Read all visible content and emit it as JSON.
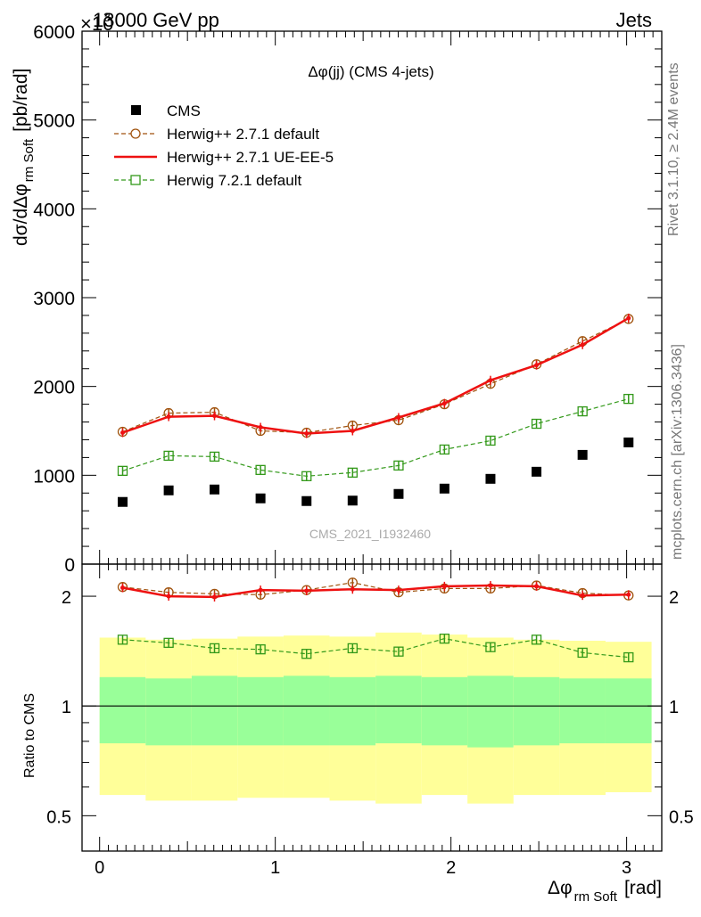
{
  "header": {
    "left": "13000 GeV pp",
    "right": "Jets",
    "exponent": "×10"
  },
  "side_text": {
    "rivet": "Rivet 3.1.10, ≥ 2.4M events",
    "mcplots": "mcplots.cern.ch [arXiv:1306.3436]"
  },
  "watermark": "CMS_2021_I1932460",
  "chart_data": [
    {
      "type": "line",
      "title": "Δφ(jj) (CMS 4-jets)",
      "ylabel": "dσ/dΔφ",
      "ylabel_sub": "rm Soft",
      "ylabel_unit": "[pb/rad]",
      "ylim": [
        0,
        6000
      ],
      "xlim": [
        -0.1,
        3.2
      ],
      "y_ticks": [
        0,
        1000,
        2000,
        3000,
        4000,
        5000,
        6000
      ],
      "x": [
        0.131,
        0.393,
        0.654,
        0.916,
        1.178,
        1.44,
        1.702,
        1.963,
        2.225,
        2.487,
        2.749,
        3.011
      ],
      "legend_position": "top-left",
      "series": [
        {
          "name": "CMS",
          "style": "marker-square",
          "color": "#000000",
          "values": [
            700,
            830,
            840,
            740,
            710,
            715,
            790,
            850,
            960,
            1040,
            1230,
            1370
          ]
        },
        {
          "name": "Herwig++ 2.7.1 default",
          "style": "dashed-circle",
          "color": "#a0520d",
          "values": [
            1490,
            1700,
            1710,
            1500,
            1480,
            1560,
            1620,
            1800,
            2030,
            2250,
            2510,
            2760
          ]
        },
        {
          "name": "Herwig++ 2.7.1 UE-EE-5",
          "style": "solid",
          "color": "#ee1111",
          "values": [
            1480,
            1660,
            1670,
            1540,
            1470,
            1500,
            1650,
            1810,
            2070,
            2240,
            2470,
            2770
          ]
        },
        {
          "name": "Herwig 7.2.1 default",
          "style": "dashed-square",
          "color": "#33991a",
          "values": [
            1050,
            1220,
            1210,
            1060,
            990,
            1030,
            1110,
            1290,
            1390,
            1580,
            1720,
            1860
          ]
        }
      ]
    },
    {
      "type": "line",
      "ylabel": "Ratio to CMS",
      "xlabel": "Δφ",
      "xlabel_sub": "rm Soft",
      "xlabel_unit": "[rad]",
      "ylim": [
        0.4,
        2.45
      ],
      "xlim": [
        -0.1,
        3.2
      ],
      "y_ticks": [
        0.5,
        1,
        2
      ],
      "y_tick_labels": [
        "0.5",
        "1",
        "2"
      ],
      "x_ticks": [
        0,
        1,
        2,
        3
      ],
      "x_tick_labels": [
        "0",
        "1",
        "2",
        "3"
      ],
      "x": [
        0.131,
        0.393,
        0.654,
        0.916,
        1.178,
        1.44,
        1.702,
        1.963,
        2.225,
        2.487,
        2.749,
        3.011
      ],
      "band_edges": [
        0,
        0.262,
        0.524,
        0.785,
        1.047,
        1.309,
        1.571,
        1.833,
        2.094,
        2.356,
        2.618,
        2.88,
        3.142
      ],
      "band_inner_lo": [
        0.79,
        0.78,
        0.78,
        0.78,
        0.78,
        0.78,
        0.79,
        0.78,
        0.77,
        0.78,
        0.79,
        0.79
      ],
      "band_inner_hi": [
        1.2,
        1.19,
        1.21,
        1.2,
        1.21,
        1.2,
        1.21,
        1.2,
        1.21,
        1.2,
        1.19,
        1.19
      ],
      "band_outer_lo": [
        0.57,
        0.55,
        0.55,
        0.56,
        0.56,
        0.55,
        0.54,
        0.57,
        0.54,
        0.57,
        0.57,
        0.58
      ],
      "band_outer_hi": [
        1.54,
        1.52,
        1.53,
        1.55,
        1.56,
        1.55,
        1.59,
        1.57,
        1.54,
        1.52,
        1.51,
        1.5
      ],
      "reference": 1,
      "series": [
        {
          "name": "Herwig++ 2.7.1 default",
          "color": "#a0520d",
          "values": [
            2.12,
            2.05,
            2.03,
            2.02,
            2.08,
            2.18,
            2.05,
            2.1,
            2.1,
            2.14,
            2.04,
            2.01
          ]
        },
        {
          "name": "Herwig++ 2.7.1 UE-EE-5",
          "color": "#ee1111",
          "values": [
            2.11,
            2.0,
            1.99,
            2.08,
            2.07,
            2.09,
            2.08,
            2.13,
            2.14,
            2.13,
            2.01,
            2.02
          ]
        },
        {
          "name": "Herwig 7.2.1 default",
          "color": "#33991a",
          "values": [
            1.52,
            1.49,
            1.44,
            1.43,
            1.39,
            1.44,
            1.41,
            1.53,
            1.45,
            1.52,
            1.4,
            1.36
          ]
        }
      ]
    }
  ]
}
